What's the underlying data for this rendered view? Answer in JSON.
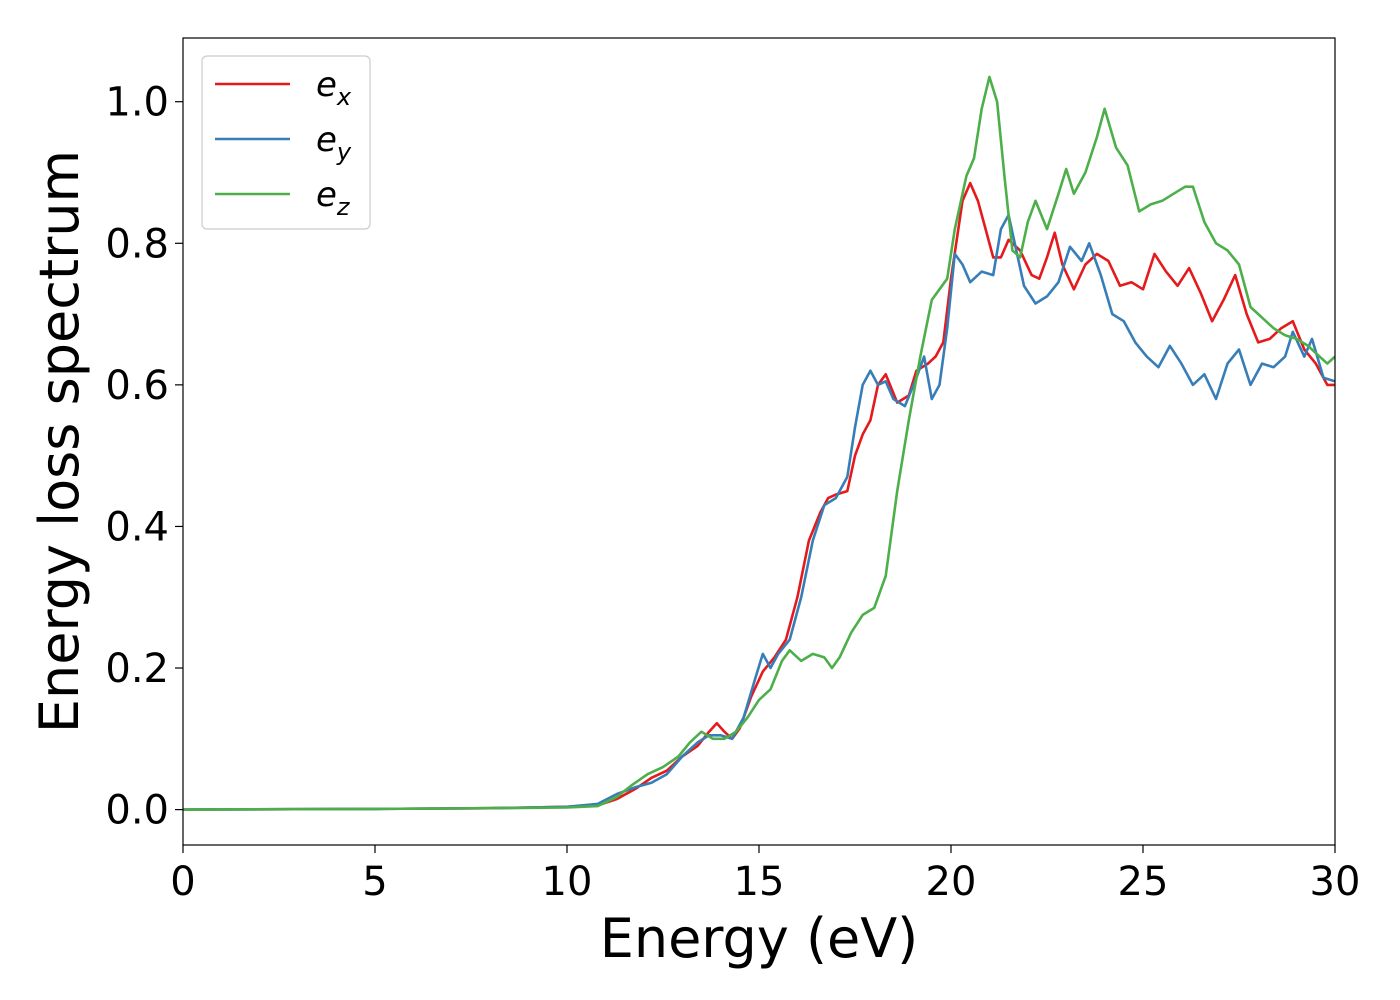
{
  "chart_data": {
    "type": "line",
    "title": "",
    "xlabel": "Energy (eV)",
    "ylabel": "Energy loss spectrum",
    "xlim": [
      0,
      30
    ],
    "ylim": [
      -0.05,
      1.09
    ],
    "xticks": [
      "0",
      "5",
      "10",
      "15",
      "20",
      "25",
      "30"
    ],
    "yticks": [
      "0.0",
      "0.2",
      "0.4",
      "0.6",
      "0.8",
      "1.0"
    ],
    "grid": false,
    "legend": "top-left",
    "series": [
      {
        "name": "e",
        "subscript": "x",
        "color": "#e41a1c",
        "points": [
          [
            0,
            0
          ],
          [
            5,
            0.001
          ],
          [
            8,
            0.002
          ],
          [
            10,
            0.004
          ],
          [
            10.8,
            0.006
          ],
          [
            11.3,
            0.015
          ],
          [
            11.8,
            0.03
          ],
          [
            12.2,
            0.045
          ],
          [
            12.6,
            0.055
          ],
          [
            13.0,
            0.075
          ],
          [
            13.4,
            0.09
          ],
          [
            13.7,
            0.11
          ],
          [
            13.9,
            0.122
          ],
          [
            14.1,
            0.11
          ],
          [
            14.3,
            0.1
          ],
          [
            14.5,
            0.115
          ],
          [
            14.8,
            0.16
          ],
          [
            15.1,
            0.195
          ],
          [
            15.4,
            0.215
          ],
          [
            15.7,
            0.24
          ],
          [
            16.0,
            0.3
          ],
          [
            16.3,
            0.38
          ],
          [
            16.6,
            0.42
          ],
          [
            16.8,
            0.44
          ],
          [
            17.0,
            0.445
          ],
          [
            17.3,
            0.45
          ],
          [
            17.5,
            0.5
          ],
          [
            17.7,
            0.53
          ],
          [
            17.9,
            0.55
          ],
          [
            18.1,
            0.6
          ],
          [
            18.3,
            0.615
          ],
          [
            18.6,
            0.575
          ],
          [
            18.9,
            0.585
          ],
          [
            19.1,
            0.62
          ],
          [
            19.4,
            0.63
          ],
          [
            19.6,
            0.64
          ],
          [
            19.8,
            0.66
          ],
          [
            20.0,
            0.75
          ],
          [
            20.3,
            0.86
          ],
          [
            20.5,
            0.885
          ],
          [
            20.7,
            0.86
          ],
          [
            20.9,
            0.82
          ],
          [
            21.1,
            0.78
          ],
          [
            21.3,
            0.78
          ],
          [
            21.5,
            0.805
          ],
          [
            21.8,
            0.79
          ],
          [
            22.1,
            0.755
          ],
          [
            22.3,
            0.75
          ],
          [
            22.5,
            0.78
          ],
          [
            22.7,
            0.815
          ],
          [
            22.9,
            0.77
          ],
          [
            23.2,
            0.735
          ],
          [
            23.5,
            0.77
          ],
          [
            23.8,
            0.785
          ],
          [
            24.1,
            0.775
          ],
          [
            24.4,
            0.74
          ],
          [
            24.7,
            0.745
          ],
          [
            25.0,
            0.735
          ],
          [
            25.3,
            0.785
          ],
          [
            25.6,
            0.76
          ],
          [
            25.9,
            0.74
          ],
          [
            26.2,
            0.765
          ],
          [
            26.5,
            0.73
          ],
          [
            26.8,
            0.69
          ],
          [
            27.1,
            0.72
          ],
          [
            27.4,
            0.755
          ],
          [
            27.7,
            0.7
          ],
          [
            28.0,
            0.66
          ],
          [
            28.3,
            0.665
          ],
          [
            28.6,
            0.68
          ],
          [
            28.9,
            0.69
          ],
          [
            29.2,
            0.65
          ],
          [
            29.5,
            0.63
          ],
          [
            29.8,
            0.6
          ],
          [
            30.0,
            0.6
          ]
        ]
      },
      {
        "name": "e",
        "subscript": "y",
        "color": "#377eb8",
        "points": [
          [
            0,
            0
          ],
          [
            5,
            0.001
          ],
          [
            8,
            0.002
          ],
          [
            10,
            0.004
          ],
          [
            10.8,
            0.008
          ],
          [
            11.3,
            0.022
          ],
          [
            11.8,
            0.032
          ],
          [
            12.2,
            0.038
          ],
          [
            12.6,
            0.05
          ],
          [
            13.0,
            0.075
          ],
          [
            13.4,
            0.095
          ],
          [
            13.7,
            0.105
          ],
          [
            14.0,
            0.105
          ],
          [
            14.3,
            0.1
          ],
          [
            14.6,
            0.13
          ],
          [
            14.9,
            0.185
          ],
          [
            15.1,
            0.22
          ],
          [
            15.3,
            0.2
          ],
          [
            15.5,
            0.22
          ],
          [
            15.8,
            0.24
          ],
          [
            16.1,
            0.3
          ],
          [
            16.4,
            0.38
          ],
          [
            16.7,
            0.43
          ],
          [
            17.0,
            0.44
          ],
          [
            17.3,
            0.47
          ],
          [
            17.5,
            0.54
          ],
          [
            17.7,
            0.6
          ],
          [
            17.9,
            0.62
          ],
          [
            18.1,
            0.6
          ],
          [
            18.3,
            0.605
          ],
          [
            18.5,
            0.58
          ],
          [
            18.8,
            0.57
          ],
          [
            19.1,
            0.61
          ],
          [
            19.3,
            0.64
          ],
          [
            19.5,
            0.58
          ],
          [
            19.7,
            0.6
          ],
          [
            19.9,
            0.68
          ],
          [
            20.1,
            0.785
          ],
          [
            20.3,
            0.77
          ],
          [
            20.5,
            0.745
          ],
          [
            20.8,
            0.76
          ],
          [
            21.1,
            0.755
          ],
          [
            21.3,
            0.82
          ],
          [
            21.5,
            0.84
          ],
          [
            21.7,
            0.79
          ],
          [
            21.9,
            0.74
          ],
          [
            22.2,
            0.715
          ],
          [
            22.5,
            0.725
          ],
          [
            22.8,
            0.745
          ],
          [
            23.1,
            0.795
          ],
          [
            23.4,
            0.775
          ],
          [
            23.6,
            0.8
          ],
          [
            23.9,
            0.755
          ],
          [
            24.2,
            0.7
          ],
          [
            24.5,
            0.69
          ],
          [
            24.8,
            0.66
          ],
          [
            25.1,
            0.64
          ],
          [
            25.4,
            0.625
          ],
          [
            25.7,
            0.655
          ],
          [
            26.0,
            0.63
          ],
          [
            26.3,
            0.6
          ],
          [
            26.6,
            0.615
          ],
          [
            26.9,
            0.58
          ],
          [
            27.2,
            0.63
          ],
          [
            27.5,
            0.65
          ],
          [
            27.8,
            0.6
          ],
          [
            28.1,
            0.63
          ],
          [
            28.4,
            0.625
          ],
          [
            28.7,
            0.64
          ],
          [
            28.9,
            0.675
          ],
          [
            29.2,
            0.64
          ],
          [
            29.4,
            0.665
          ],
          [
            29.7,
            0.61
          ],
          [
            30.0,
            0.605
          ]
        ]
      },
      {
        "name": "e",
        "subscript": "z",
        "color": "#4daf4a",
        "points": [
          [
            0,
            0
          ],
          [
            5,
            0.001
          ],
          [
            8,
            0.002
          ],
          [
            10,
            0.003
          ],
          [
            10.8,
            0.005
          ],
          [
            11.3,
            0.018
          ],
          [
            11.7,
            0.035
          ],
          [
            12.1,
            0.05
          ],
          [
            12.5,
            0.06
          ],
          [
            12.9,
            0.075
          ],
          [
            13.2,
            0.095
          ],
          [
            13.5,
            0.11
          ],
          [
            13.8,
            0.1
          ],
          [
            14.1,
            0.1
          ],
          [
            14.4,
            0.11
          ],
          [
            14.7,
            0.13
          ],
          [
            15.0,
            0.155
          ],
          [
            15.3,
            0.17
          ],
          [
            15.6,
            0.21
          ],
          [
            15.8,
            0.225
          ],
          [
            16.1,
            0.21
          ],
          [
            16.4,
            0.22
          ],
          [
            16.7,
            0.215
          ],
          [
            16.9,
            0.2
          ],
          [
            17.1,
            0.215
          ],
          [
            17.4,
            0.25
          ],
          [
            17.7,
            0.275
          ],
          [
            18.0,
            0.285
          ],
          [
            18.3,
            0.33
          ],
          [
            18.6,
            0.45
          ],
          [
            18.9,
            0.55
          ],
          [
            19.2,
            0.64
          ],
          [
            19.5,
            0.72
          ],
          [
            19.7,
            0.735
          ],
          [
            19.9,
            0.75
          ],
          [
            20.1,
            0.82
          ],
          [
            20.4,
            0.895
          ],
          [
            20.6,
            0.92
          ],
          [
            20.8,
            0.99
          ],
          [
            21.0,
            1.035
          ],
          [
            21.2,
            1.0
          ],
          [
            21.4,
            0.89
          ],
          [
            21.6,
            0.79
          ],
          [
            21.8,
            0.78
          ],
          [
            22.0,
            0.83
          ],
          [
            22.2,
            0.86
          ],
          [
            22.5,
            0.82
          ],
          [
            22.8,
            0.87
          ],
          [
            23.0,
            0.905
          ],
          [
            23.2,
            0.87
          ],
          [
            23.5,
            0.9
          ],
          [
            23.8,
            0.95
          ],
          [
            24.0,
            0.99
          ],
          [
            24.3,
            0.935
          ],
          [
            24.6,
            0.91
          ],
          [
            24.9,
            0.845
          ],
          [
            25.2,
            0.855
          ],
          [
            25.5,
            0.86
          ],
          [
            25.8,
            0.87
          ],
          [
            26.1,
            0.88
          ],
          [
            26.3,
            0.88
          ],
          [
            26.6,
            0.83
          ],
          [
            26.9,
            0.8
          ],
          [
            27.2,
            0.79
          ],
          [
            27.5,
            0.77
          ],
          [
            27.8,
            0.71
          ],
          [
            28.1,
            0.695
          ],
          [
            28.4,
            0.68
          ],
          [
            28.7,
            0.67
          ],
          [
            29.0,
            0.665
          ],
          [
            29.3,
            0.655
          ],
          [
            29.6,
            0.64
          ],
          [
            29.8,
            0.63
          ],
          [
            30.0,
            0.64
          ]
        ]
      }
    ]
  }
}
